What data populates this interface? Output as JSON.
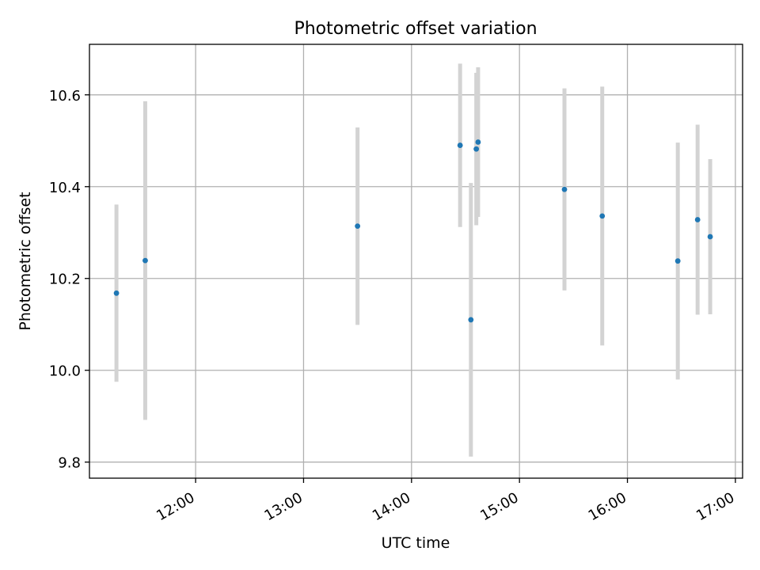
{
  "chart_data": {
    "type": "scatter",
    "title": "Photometric offset variation",
    "xlabel": "UTC time",
    "ylabel": "Photometric offset",
    "x_tick_labels": [
      "12:00",
      "13:00",
      "14:00",
      "15:00",
      "16:00",
      "17:00"
    ],
    "y_ticks": [
      "9.8",
      "10.0",
      "10.2",
      "10.4",
      "10.6"
    ],
    "xlim": [
      "11:01",
      "17:04"
    ],
    "ylim": [
      9.765,
      10.71
    ],
    "grid": true,
    "colors": {
      "marker": "#1f77b4",
      "errorbar": "#d3d3d3",
      "grid": "#b0b0b0"
    },
    "points": [
      {
        "x": "11:16",
        "y": 10.168,
        "err": 0.193
      },
      {
        "x": "11:32",
        "y": 10.239,
        "err": 0.347
      },
      {
        "x": "13:30",
        "y": 10.314,
        "err": 0.215
      },
      {
        "x": "14:27",
        "y": 10.49,
        "err": 0.178
      },
      {
        "x": "14:33",
        "y": 10.11,
        "err": 0.298
      },
      {
        "x": "14:36",
        "y": 10.482,
        "err": 0.166
      },
      {
        "x": "14:37",
        "y": 10.497,
        "err": 0.163
      },
      {
        "x": "15:25",
        "y": 10.394,
        "err": 0.22
      },
      {
        "x": "15:46",
        "y": 10.336,
        "err": 0.282
      },
      {
        "x": "16:28",
        "y": 10.238,
        "err": 0.258
      },
      {
        "x": "16:39",
        "y": 10.328,
        "err": 0.207
      },
      {
        "x": "16:46",
        "y": 10.291,
        "err": 0.169
      }
    ]
  }
}
